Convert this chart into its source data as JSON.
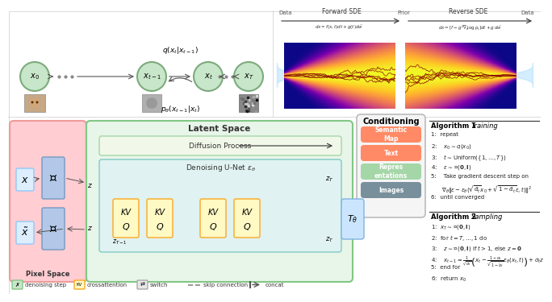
{
  "title": "",
  "bg_color": "#f5f5f5",
  "top_left": {
    "nodes": [
      "x_0",
      "x_{t-1}",
      "x_t",
      "x_T"
    ],
    "node_color": "#c8e6c9",
    "node_edge_color": "#aed6a0",
    "arrow_color": "#555555",
    "forward_label": "q(x_t|x_{t-1})",
    "backward_label": "p_\\theta(x_{t-1}|x_t)"
  },
  "top_right": {
    "title": "Forward SDE",
    "title2": "Reverse SDE",
    "label_data": "Data",
    "label_prior": "Prior"
  },
  "bottom_left": {
    "pixel_space_color": "#ffcdd2",
    "latent_space_color": "#c8e6c9",
    "latent_space_border": "#81c784",
    "diffusion_box_color": "#e8f5e9",
    "diffusion_box_border": "#66bb6a",
    "unet_box_color": "#e0eeee",
    "unet_box_border": "#80cbc4",
    "qkv_box_color": "#fff9c4",
    "qkv_box_border": "#f9a825",
    "encoder_color": "#b3c8e8",
    "decoder_color": "#b3c8e8",
    "pixel_space_label": "Pixel Space",
    "latent_space_label": "Latent Space",
    "diffusion_label": "Diffusion Process",
    "unet_label": "Denoising U-Net $\\epsilon_\\theta$"
  },
  "conditioning": {
    "box_color": "#f5f5f5",
    "box_border": "#aaaaaa",
    "title": "Conditioning",
    "items": [
      {
        "label": "Semantic\nMap",
        "color": "#ff8a65",
        "text_color": "white"
      },
      {
        "label": "Text",
        "color": "#ff8a65",
        "text_color": "white"
      },
      {
        "label": "Repres\nentations",
        "color": "#a5d6a7",
        "text_color": "white"
      },
      {
        "label": "Images",
        "color": "#78909c",
        "text_color": "white"
      }
    ]
  },
  "algorithm1": {
    "title": "Algorithm 1 Training",
    "lines": [
      "1:  repeat",
      "2:    $x_0 \\sim q(x_0)$",
      "3:    $t \\sim \\mathrm{Uniform}(\\{1,\\ldots,T\\})$",
      "4:    $\\epsilon \\sim \\mathcal{N}(\\mathbf{0}, \\mathbf{I})$",
      "5:    Take gradient descent step on",
      "      $\\nabla_\\theta \\| \\epsilon - \\epsilon_\\theta(\\sqrt{\\bar{\\alpha}_t} x_0 + \\sqrt{1-\\bar{\\alpha}_t}\\epsilon, t) \\|^2$",
      "6:  until converged"
    ]
  },
  "algorithm2": {
    "title": "Algorithm 2 Sampling",
    "lines": [
      "1:  $x_T \\sim \\mathcal{N}(\\mathbf{0}, \\mathbf{I})$",
      "2:  for $t = T, \\ldots, 1$ do",
      "3:    $z \\sim \\mathcal{N}(\\mathbf{0}, \\mathbf{I})$ if $t > 1$, else $z = \\mathbf{0}$",
      "4:    $x_{t-1} = \\frac{1}{\\sqrt{\\alpha_t}}\\left(x_t - \\frac{1-\\alpha_t}{\\sqrt{1-\\bar{\\alpha}_t}} \\epsilon_\\theta(x_t, t)\\right) + \\sigma_t z$",
      "5:  end for",
      "6:  return $x_0$"
    ]
  }
}
